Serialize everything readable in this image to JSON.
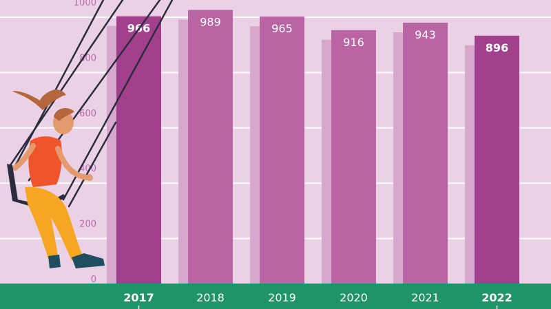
{
  "chart_data": {
    "type": "bar",
    "categories": [
      "2017",
      "2018",
      "2019",
      "2020",
      "2021",
      "2022"
    ],
    "values": [
      966,
      989,
      965,
      916,
      943,
      896
    ],
    "highlighted": [
      "2017",
      "2022"
    ],
    "value_labels": [
      "966",
      "989",
      "965",
      "916",
      "943",
      "896"
    ],
    "yticks": [
      0,
      200,
      400,
      600,
      800,
      1000
    ],
    "ytick_labels": [
      "0",
      "200",
      "400",
      "600",
      "800",
      "1000"
    ],
    "ylim": [
      0,
      1000
    ],
    "grid": true,
    "title": "",
    "xlabel": "",
    "ylabel": ""
  },
  "colors": {
    "background": "#ead1e6",
    "bar": "#bb64a4",
    "bar_highlight": "#a3408d",
    "bar_shadow": "#d7a8cc",
    "baseline": "#1f9468",
    "grid": "#ffffff"
  },
  "decoration": {
    "illustration": "girl-on-swing"
  }
}
